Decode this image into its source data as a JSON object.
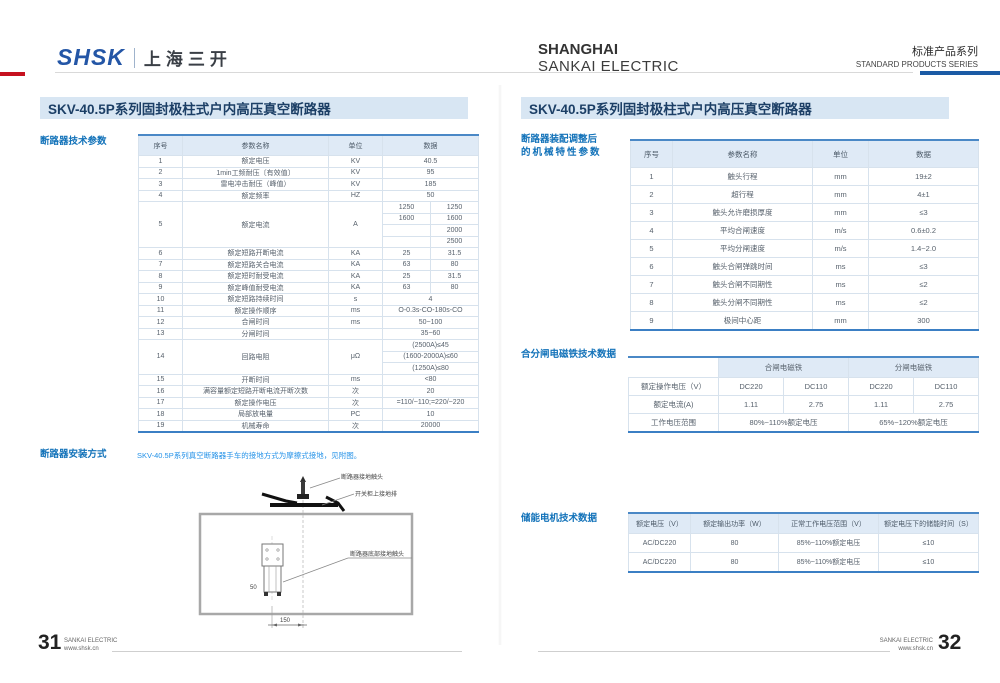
{
  "header": {
    "logo_en": "SHSK",
    "logo_cn": "上海三开",
    "company_line1": "SHANGHAI",
    "company_line2": "SANKAI ELECTRIC",
    "series_cn": "标准产品系列",
    "series_en": "STANDARD PRODUCTS SERIES"
  },
  "left_page": {
    "title": "SKV-40.5P系列固封极柱式户内高压真空断路器",
    "section1_label": "断路器技术参数",
    "tech_table": {
      "headers": [
        "序号",
        "参数名称",
        "单位",
        "数据"
      ],
      "rows": [
        {
          "no": "1",
          "name": "额定电压",
          "unit": "KV",
          "data": "40.5"
        },
        {
          "no": "2",
          "name": "1min工频耐压〔有效值〕",
          "unit": "KV",
          "data": "95"
        },
        {
          "no": "3",
          "name": "雷电冲击耐压（峰值）",
          "unit": "KV",
          "data": "185"
        },
        {
          "no": "4",
          "name": "额定频率",
          "unit": "HZ",
          "data": "50"
        },
        {
          "no": "5",
          "name": "额定电流",
          "unit": "A",
          "sub": [
            [
              "1250",
              "1250"
            ],
            [
              "1600",
              "1600"
            ],
            [
              "",
              "2000"
            ],
            [
              "",
              "2500"
            ]
          ]
        },
        {
          "no": "6",
          "name": "额定短路开断电流",
          "unit": "KA",
          "pair": [
            "25",
            "31.5"
          ]
        },
        {
          "no": "7",
          "name": "额定短路关合电流",
          "unit": "KA",
          "pair": [
            "63",
            "80"
          ]
        },
        {
          "no": "8",
          "name": "额定短时耐受电流",
          "unit": "KA",
          "pair": [
            "25",
            "31.5"
          ]
        },
        {
          "no": "9",
          "name": "额定峰值耐受电流",
          "unit": "KA",
          "pair": [
            "63",
            "80"
          ]
        },
        {
          "no": "10",
          "name": "额定短路持续时间",
          "unit": "s",
          "data": "4"
        },
        {
          "no": "11",
          "name": "额定操作顺序",
          "unit": "ms",
          "data": "O-0.3s-CO-180s-CO"
        },
        {
          "no": "12",
          "name": "合闸时间",
          "unit": "ms",
          "data": "50~100"
        },
        {
          "no": "13",
          "name": "分闸时间",
          "unit": "",
          "data": "35~60"
        },
        {
          "no": "14",
          "name": "回路电阻",
          "unit": "μΩ",
          "sub": [
            [
              "(2500A)≤45"
            ],
            [
              "(1600-2000A)≤60"
            ],
            [
              "(1250A)≤80"
            ]
          ]
        },
        {
          "no": "15",
          "name": "开断时间",
          "unit": "ms",
          "data": "<80"
        },
        {
          "no": "16",
          "name": "满容量额定短路开断电流开断次数",
          "unit": "次",
          "data": "20"
        },
        {
          "no": "17",
          "name": "额定操作电压",
          "unit": "次",
          "data": "=110/~110;=220/~220"
        },
        {
          "no": "18",
          "name": "局部放电量",
          "unit": "PC",
          "data": "10"
        },
        {
          "no": "19",
          "name": "机械寿命",
          "unit": "次",
          "data": "20000"
        }
      ]
    },
    "section2_label": "断路器安装方式",
    "install_note": "SKV-40.5P系列真空断路器手车的接地方式为摩擦式接地，见附图。",
    "diagram": {
      "label_top": "断路器接地触头",
      "label_mid": "开关柜上接地排",
      "label_bottom": "断路器底部接地触头",
      "dim_height": "50",
      "dim_width": "150"
    }
  },
  "right_page": {
    "title": "SKV-40.5P系列固封极柱式户内高压真空断路器",
    "section1_label_line1": "断路器装配调整后",
    "section1_label_line2": "的机械特性参数",
    "mech_table": {
      "headers": [
        "序号",
        "参数名称",
        "单位",
        "数据"
      ],
      "rows": [
        [
          "1",
          "触头行程",
          "mm",
          "19±2"
        ],
        [
          "2",
          "超行程",
          "mm",
          "4±1"
        ],
        [
          "3",
          "触头允许磨损厚度",
          "mm",
          "≤3"
        ],
        [
          "4",
          "平均合闸速度",
          "m/s",
          "0.6±0.2"
        ],
        [
          "5",
          "平均分闸速度",
          "m/s",
          "1.4~2.0"
        ],
        [
          "6",
          "触头合闸弹跳时间",
          "ms",
          "≤3"
        ],
        [
          "7",
          "触头合闸不同期性",
          "ms",
          "≤2"
        ],
        [
          "8",
          "触头分闸不同期性",
          "ms",
          "≤2"
        ],
        [
          "9",
          "极间中心距",
          "mm",
          "300"
        ]
      ]
    },
    "section2_label": "合分闸电磁铁技术数据",
    "magnet_table": {
      "group_headers": [
        "合闸电磁铁",
        "分闸电磁铁"
      ],
      "rows": [
        {
          "label": "额定操作电压（V）",
          "cells": [
            "DC220",
            "DC110",
            "DC220",
            "DC110"
          ]
        },
        {
          "label": "额定电流(A)",
          "cells": [
            "1.11",
            "2.75",
            "1.11",
            "2.75"
          ]
        },
        {
          "label": "工作电压范围",
          "span_cells": [
            "80%~110%额定电压",
            "65%~120%额定电压"
          ]
        }
      ]
    },
    "section3_label": "储能电机技术数据",
    "motor_table": {
      "headers": [
        "额定电压（V）",
        "额定输出功率（W）",
        "正常工作电压范围（V）",
        "额定电压下的储能时间（S）"
      ],
      "rows": [
        [
          "AC/DC220",
          "80",
          "85%~110%额定电压",
          "≤10"
        ],
        [
          "AC/DC220",
          "80",
          "85%~110%额定电压",
          "≤10"
        ]
      ]
    }
  },
  "footer": {
    "left_page_no": "31",
    "right_page_no": "32",
    "brand": "SANKAI ELECTRIC",
    "website": "www.shsk.cn"
  }
}
